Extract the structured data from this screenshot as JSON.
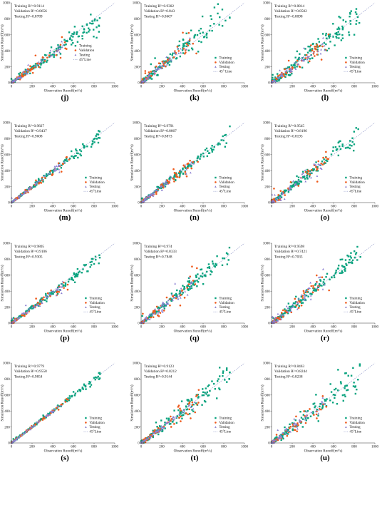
{
  "colors": {
    "training": "#0aa37f",
    "validation": "#ee5a1c",
    "testing": "#8b7fd0",
    "line45": "#8e96c8",
    "axis": "#333333"
  },
  "chart_data": [
    {
      "panel": "(j)",
      "type": "scatter",
      "xlabel": "Observation Runoff(m³/s)",
      "ylabel": "Simulation Runoff(m³/s)",
      "xlim": [
        0,
        1000
      ],
      "ylim": [
        0,
        1000
      ],
      "xticks": [
        0,
        200,
        400,
        600,
        800,
        1000
      ],
      "yticks": [
        0,
        200,
        400,
        600,
        800,
        1000
      ],
      "metrics": [
        "Training R²=0.9114",
        "Validation R²=0.8656",
        "Testing R²=0.8789"
      ],
      "legend": [
        "Training",
        "Validation",
        "Testing",
        "45°Line"
      ],
      "legend_position": "center-right",
      "seed": 11,
      "train_spread": 0.14,
      "val_spread": 0.18,
      "test_spread": 0.12,
      "scale": 0.92
    },
    {
      "panel": "(k)",
      "type": "scatter",
      "xlabel": "Observation Runoff(m³/s)",
      "ylabel": "Simulation Runoff(m³/s)",
      "xlim": [
        0,
        1000
      ],
      "ylim": [
        0,
        1000
      ],
      "xticks": [
        0,
        200,
        400,
        600,
        800,
        1000
      ],
      "yticks": [
        0,
        200,
        400,
        600,
        800,
        1000
      ],
      "metrics": [
        "Training R²=0.9302",
        "Validation R²=0.843",
        "Testing R²=0.8607"
      ],
      "legend": [
        "Training",
        "Validation",
        "Testing",
        "45° Line"
      ],
      "legend_position": "lower-right",
      "seed": 23,
      "train_spread": 0.22,
      "val_spread": 0.2,
      "test_spread": 0.16,
      "scale": 1.05
    },
    {
      "panel": "(l)",
      "type": "scatter",
      "xlabel": "Observation Runoff(m³/s)",
      "ylabel": "Simulation Runoff(m³/s)",
      "xlim": [
        0,
        1000
      ],
      "ylim": [
        0,
        1000
      ],
      "xticks": [
        0,
        200,
        400,
        600,
        800,
        1000
      ],
      "yticks": [
        0,
        200,
        400,
        600,
        800,
        1000
      ],
      "metrics": [
        "Training R²=0.8814",
        "Validation R²=0.8502",
        "Testing R²=0.8098"
      ],
      "legend": [
        "Training",
        "Validation",
        "Testing",
        "45°Line"
      ],
      "legend_position": "lower-right",
      "seed": 37,
      "train_spread": 0.24,
      "val_spread": 0.22,
      "test_spread": 0.2,
      "scale": 0.97
    },
    {
      "panel": "(m)",
      "type": "scatter",
      "xlabel": "Observation Runoff(m³/s)",
      "ylabel": "Simulation Runoff(m³/s)",
      "xlim": [
        0,
        1000
      ],
      "ylim": [
        0,
        1000
      ],
      "xticks": [
        0,
        200,
        400,
        600,
        800,
        1000
      ],
      "yticks": [
        0,
        200,
        400,
        600,
        800,
        1000
      ],
      "metrics": [
        "Training R²=0.9827",
        "Validation R²=0.9437",
        "Testing R²=0.9608"
      ],
      "legend": [
        "Training",
        "Validation",
        "Testing",
        "45°Line"
      ],
      "legend_position": "lower-right",
      "seed": 41,
      "train_spread": 0.08,
      "val_spread": 0.1,
      "test_spread": 0.08,
      "scale": 0.98
    },
    {
      "panel": "(n)",
      "type": "scatter",
      "xlabel": "Observation Runoff(m³/s)",
      "ylabel": "Simulation Runoff(m³/s)",
      "xlim": [
        0,
        1000
      ],
      "ylim": [
        0,
        1000
      ],
      "xticks": [
        0,
        200,
        400,
        600,
        800,
        1000
      ],
      "yticks": [
        0,
        200,
        400,
        600,
        800,
        1000
      ],
      "metrics": [
        "Training R²=0.9791",
        "Validation R²=0.8867",
        "Testing R²=0.8873"
      ],
      "legend": [
        "Training",
        "Validation",
        "Testing",
        "45°Line"
      ],
      "legend_position": "lower-right",
      "seed": 53,
      "train_spread": 0.1,
      "val_spread": 0.18,
      "test_spread": 0.15,
      "scale": 1.0
    },
    {
      "panel": "(o)",
      "type": "scatter",
      "xlabel": "Observation Runoff(m³/s)",
      "ylabel": "Simulation Runoff(m³/s)",
      "xlim": [
        0,
        1000
      ],
      "ylim": [
        0,
        1000
      ],
      "xticks": [
        0,
        200,
        400,
        600,
        800,
        1000
      ],
      "yticks": [
        0,
        200,
        400,
        600,
        800,
        1000
      ],
      "metrics": [
        "Training R²=0.9545",
        "Validation R²=0.8196",
        "Testing R²=0.8193"
      ],
      "legend": [
        "Training",
        "Validation",
        "Testing",
        "45°Line"
      ],
      "legend_position": "lower-right",
      "seed": 67,
      "train_spread": 0.13,
      "val_spread": 0.28,
      "test_spread": 0.22,
      "scale": 1.0
    },
    {
      "panel": "(p)",
      "type": "scatter",
      "xlabel": "Observation Runoff(m³/s)",
      "ylabel": "Simulation Runoff(m³/s)",
      "xlim": [
        0,
        1000
      ],
      "ylim": [
        0,
        1000
      ],
      "xticks": [
        0,
        200,
        400,
        600,
        800,
        1000
      ],
      "yticks": [
        0,
        200,
        400,
        600,
        800,
        1000
      ],
      "metrics": [
        "Training R²=0.9805",
        "Validation R²=0.9106",
        "Testing R²=0.9305"
      ],
      "legend": [
        "Training",
        "Validation",
        "Testing",
        "45°Line"
      ],
      "legend_position": "lower-right",
      "seed": 71,
      "train_spread": 0.09,
      "val_spread": 0.16,
      "test_spread": 0.12,
      "scale": 0.96
    },
    {
      "panel": "(q)",
      "type": "scatter",
      "xlabel": "Observation Runoff(m³/s)",
      "ylabel": "Simulation Runoff(m³/s)",
      "xlim": [
        0,
        1000
      ],
      "ylim": [
        0,
        1000
      ],
      "xticks": [
        0,
        200,
        400,
        600,
        800,
        1000
      ],
      "yticks": [
        0,
        200,
        400,
        600,
        800,
        1000
      ],
      "metrics": [
        "Training R²=0.974",
        "Validation R²=0.8333",
        "Testing R²=0.7848"
      ],
      "legend": [
        "Training",
        "Validation",
        "Testing",
        "45°Line"
      ],
      "legend_position": "lower-right",
      "seed": 83,
      "train_spread": 0.12,
      "val_spread": 0.3,
      "test_spread": 0.26,
      "scale": 1.0
    },
    {
      "panel": "(r)",
      "type": "scatter",
      "xlabel": "Observation Runoff(m³/s)",
      "ylabel": "Simulation Runoff(m³/s)",
      "xlim": [
        0,
        1000
      ],
      "ylim": [
        0,
        1000
      ],
      "xticks": [
        0,
        200,
        400,
        600,
        800,
        1000
      ],
      "yticks": [
        0,
        200,
        400,
        600,
        800,
        1000
      ],
      "metrics": [
        "Training R²=0.9598",
        "Validation R²=0.7421",
        "Testing R²=0.7035"
      ],
      "legend": [
        "Training",
        "Validation",
        "Testing",
        "45°Line"
      ],
      "legend_position": "lower-right",
      "seed": 97,
      "train_spread": 0.14,
      "val_spread": 0.34,
      "test_spread": 0.3,
      "scale": 1.0
    },
    {
      "panel": "(s)",
      "type": "scatter",
      "xlabel": "Observation Runoff(m³/s)",
      "ylabel": "Simulation Runoff(m³/s)",
      "xlim": [
        0,
        1000
      ],
      "ylim": [
        0,
        1000
      ],
      "xticks": [
        0,
        200,
        400,
        600,
        800,
        1000
      ],
      "yticks": [
        0,
        200,
        400,
        600,
        800,
        1000
      ],
      "metrics": [
        "Training R²=0.9779",
        "Validation R²=0.9558",
        "Testing R²=0.9854"
      ],
      "legend": [
        "Training",
        "Validation",
        "Testing",
        "45°Line"
      ],
      "legend_position": "lower-right",
      "seed": 101,
      "train_spread": 0.05,
      "val_spread": 0.06,
      "test_spread": 0.04,
      "scale": 1.0
    },
    {
      "panel": "(t)",
      "type": "scatter",
      "xlabel": "Observation Runoff(m³/s)",
      "ylabel": "Simulation Runoff(m³/s)",
      "xlim": [
        0,
        1000
      ],
      "ylim": [
        0,
        1000
      ],
      "xticks": [
        0,
        200,
        400,
        600,
        800,
        1000
      ],
      "yticks": [
        0,
        200,
        400,
        600,
        800,
        1000
      ],
      "metrics": [
        "Training R²=0.9123",
        "Validation R²=0.8212",
        "Testing R²=0.9144"
      ],
      "legend": [
        "Training",
        "Validation",
        "Testing",
        "45°Line"
      ],
      "legend_position": "lower-right",
      "seed": 113,
      "train_spread": 0.18,
      "val_spread": 0.22,
      "test_spread": 0.12,
      "scale": 0.98
    },
    {
      "panel": "(u)",
      "type": "scatter",
      "xlabel": "Observation Runoff(m³/s)",
      "ylabel": "Simulation Runoff(m³/s)",
      "xlim": [
        0,
        1000
      ],
      "ylim": [
        0,
        1000
      ],
      "xticks": [
        0,
        200,
        400,
        600,
        800,
        1000
      ],
      "yticks": [
        0,
        200,
        400,
        600,
        800,
        1000
      ],
      "metrics": [
        "Training R²=0.8463",
        "Validation R²=0.8244",
        "Testing R²=0.8238"
      ],
      "legend": [
        "Training",
        "Validation",
        "Testing",
        "45°Line"
      ],
      "legend_position": "lower-right",
      "seed": 127,
      "train_spread": 0.22,
      "val_spread": 0.24,
      "test_spread": 0.2,
      "scale": 0.98
    }
  ]
}
